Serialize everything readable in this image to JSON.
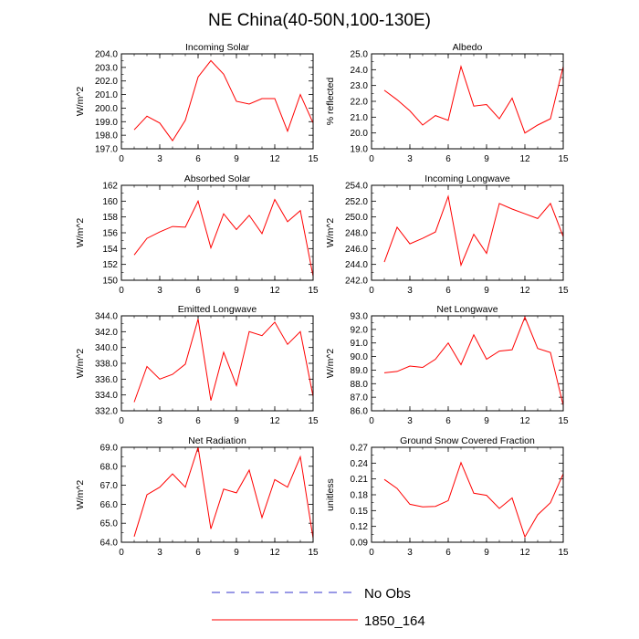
{
  "figure": {
    "title": "NE China(40-50N,100-130E)"
  },
  "colors": {
    "model": "#ff0000",
    "obs": "#3333cc",
    "frame": "#000000"
  },
  "legend": [
    {
      "label": "No Obs",
      "style": "dashed",
      "color": "#3333cc"
    },
    {
      "label": "1850_164",
      "style": "solid",
      "color": "#ff0000"
    }
  ],
  "chart_data": [
    {
      "type": "line",
      "title": "Incoming Solar",
      "ylabel": "W/m^2",
      "xlim": [
        0,
        15
      ],
      "ylim": [
        197.0,
        204.0
      ],
      "xticks": [
        "0",
        "3",
        "6",
        "9",
        "12",
        "15"
      ],
      "yticks": [
        "197.0",
        "198.0",
        "199.0",
        "200.0",
        "201.0",
        "202.0",
        "203.0",
        "204.0"
      ],
      "x": [
        1,
        2,
        3,
        4,
        5,
        6,
        7,
        8,
        9,
        10,
        11,
        12,
        13,
        14,
        15
      ],
      "series": [
        {
          "name": "1850_164",
          "values": [
            198.4,
            199.4,
            198.9,
            197.6,
            199.1,
            202.3,
            203.5,
            202.5,
            200.5,
            200.3,
            200.7,
            200.7,
            198.3,
            201.0,
            198.9
          ]
        }
      ]
    },
    {
      "type": "line",
      "title": "Albedo",
      "ylabel": "% reflected",
      "xlim": [
        0,
        15
      ],
      "ylim": [
        19.0,
        25.0
      ],
      "xticks": [
        "0",
        "3",
        "6",
        "9",
        "12",
        "15"
      ],
      "yticks": [
        "19.0",
        "20.0",
        "21.0",
        "22.0",
        "23.0",
        "24.0",
        "25.0"
      ],
      "x": [
        1,
        2,
        3,
        4,
        5,
        6,
        7,
        8,
        9,
        10,
        11,
        12,
        13,
        14,
        15
      ],
      "series": [
        {
          "name": "1850_164",
          "values": [
            22.7,
            22.1,
            21.4,
            20.5,
            21.1,
            20.8,
            24.2,
            21.7,
            21.8,
            20.9,
            22.2,
            20.0,
            20.5,
            20.9,
            24.2
          ]
        }
      ]
    },
    {
      "type": "line",
      "title": "Absorbed Solar",
      "ylabel": "W/m^2",
      "xlim": [
        0,
        15
      ],
      "ylim": [
        150,
        162
      ],
      "xticks": [
        "0",
        "3",
        "6",
        "9",
        "12",
        "15"
      ],
      "yticks": [
        "150",
        "152",
        "154",
        "156",
        "158",
        "160",
        "162"
      ],
      "x": [
        1,
        2,
        3,
        4,
        5,
        6,
        7,
        8,
        9,
        10,
        11,
        12,
        13,
        14,
        15
      ],
      "series": [
        {
          "name": "1850_164",
          "values": [
            153.2,
            155.3,
            156.1,
            156.8,
            156.7,
            160.0,
            154.1,
            158.4,
            156.4,
            158.2,
            155.9,
            160.2,
            157.4,
            158.8,
            150.5
          ]
        }
      ]
    },
    {
      "type": "line",
      "title": "Incoming Longwave",
      "ylabel": "W/m^2",
      "xlim": [
        0,
        15
      ],
      "ylim": [
        242.0,
        254.0
      ],
      "xticks": [
        "0",
        "3",
        "6",
        "9",
        "12",
        "15"
      ],
      "yticks": [
        "242.0",
        "244.0",
        "246.0",
        "248.0",
        "250.0",
        "252.0",
        "254.0"
      ],
      "x": [
        1,
        2,
        3,
        4,
        5,
        6,
        7,
        8,
        9,
        10,
        11,
        12,
        13,
        14,
        15
      ],
      "series": [
        {
          "name": "1850_164",
          "values": [
            244.3,
            248.7,
            246.6,
            247.3,
            248.1,
            252.6,
            243.9,
            247.8,
            245.4,
            251.7,
            251.0,
            250.4,
            249.8,
            251.7,
            247.5
          ]
        }
      ]
    },
    {
      "type": "line",
      "title": "Emitted Longwave",
      "ylabel": "W/m^2",
      "xlim": [
        0,
        15
      ],
      "ylim": [
        332.0,
        344.0
      ],
      "xticks": [
        "0",
        "3",
        "6",
        "9",
        "12",
        "15"
      ],
      "yticks": [
        "332.0",
        "334.0",
        "336.0",
        "338.0",
        "340.0",
        "342.0",
        "344.0"
      ],
      "x": [
        1,
        2,
        3,
        4,
        5,
        6,
        7,
        8,
        9,
        10,
        11,
        12,
        13,
        14,
        15
      ],
      "series": [
        {
          "name": "1850_164",
          "values": [
            333.1,
            337.6,
            336.0,
            336.6,
            337.9,
            343.6,
            333.3,
            339.4,
            335.2,
            342.0,
            341.5,
            343.2,
            340.4,
            342.0,
            333.8
          ]
        }
      ]
    },
    {
      "type": "line",
      "title": "Net Longwave",
      "ylabel": "W/m^2",
      "xlim": [
        0,
        15
      ],
      "ylim": [
        86.0,
        93.0
      ],
      "xticks": [
        "0",
        "3",
        "6",
        "9",
        "12",
        "15"
      ],
      "yticks": [
        "86.0",
        "87.0",
        "88.0",
        "89.0",
        "90.0",
        "91.0",
        "92.0",
        "93.0"
      ],
      "x": [
        1,
        2,
        3,
        4,
        5,
        6,
        7,
        8,
        9,
        10,
        11,
        12,
        13,
        14,
        15
      ],
      "series": [
        {
          "name": "1850_164",
          "values": [
            88.8,
            88.9,
            89.3,
            89.2,
            89.8,
            91.0,
            89.4,
            91.6,
            89.8,
            90.4,
            90.5,
            92.9,
            90.6,
            90.3,
            86.4
          ]
        }
      ]
    },
    {
      "type": "line",
      "title": "Net Radiation",
      "ylabel": "W/m^2",
      "xlim": [
        0,
        15
      ],
      "ylim": [
        64.0,
        69.0
      ],
      "xticks": [
        "0",
        "3",
        "6",
        "9",
        "12",
        "15"
      ],
      "yticks": [
        "64.0",
        "65.0",
        "66.0",
        "67.0",
        "68.0",
        "69.0"
      ],
      "x": [
        1,
        2,
        3,
        4,
        5,
        6,
        7,
        8,
        9,
        10,
        11,
        12,
        13,
        14,
        15
      ],
      "series": [
        {
          "name": "1850_164",
          "values": [
            64.3,
            66.5,
            66.9,
            67.6,
            66.9,
            69.0,
            64.7,
            66.8,
            66.6,
            67.8,
            65.3,
            67.3,
            66.9,
            68.5,
            64.2
          ]
        }
      ]
    },
    {
      "type": "line",
      "title": "Ground Snow Covered Fraction",
      "ylabel": "unitless",
      "xlim": [
        0,
        15
      ],
      "ylim": [
        0.09,
        0.27
      ],
      "xticks": [
        "0",
        "3",
        "6",
        "9",
        "12",
        "15"
      ],
      "yticks": [
        "0.09",
        "0.12",
        "0.15",
        "0.18",
        "0.21",
        "0.24",
        "0.27"
      ],
      "x": [
        1,
        2,
        3,
        4,
        5,
        6,
        7,
        8,
        9,
        10,
        11,
        12,
        13,
        14,
        15
      ],
      "series": [
        {
          "name": "1850_164",
          "values": [
            0.209,
            0.192,
            0.162,
            0.157,
            0.158,
            0.169,
            0.241,
            0.183,
            0.179,
            0.154,
            0.174,
            0.1,
            0.142,
            0.165,
            0.22
          ]
        }
      ]
    }
  ]
}
